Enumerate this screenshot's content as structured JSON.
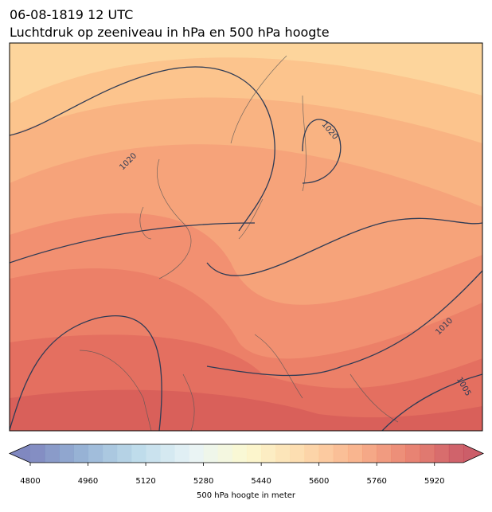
{
  "header": {
    "line1": "06-08-1819 12 UTC",
    "line2": "Luchtdruk op zeeniveau in hPa en 500 hPa hoogte"
  },
  "map": {
    "contour_labels": [
      "1020",
      "1020",
      "1010",
      "1005"
    ]
  },
  "colorbar": {
    "min": 4800,
    "max": 6000,
    "step": 40,
    "ticks": [
      4800,
      4960,
      5120,
      5280,
      5440,
      5600,
      5760,
      5920
    ],
    "colormap": [
      "#6a73b5",
      "#87a9d0",
      "#b4d6e7",
      "#e4f2f5",
      "#fbf8c8",
      "#fdd6a0",
      "#f8a87b",
      "#e6705b",
      "#c3424f"
    ],
    "label": "500 hPa hoogte in meter"
  }
}
